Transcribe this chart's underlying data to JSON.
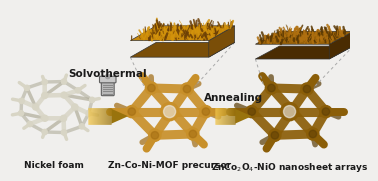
{
  "bg_color": "#f0efed",
  "label1": "Nickel foam",
  "label2": "Zn-Co-Ni-MOF precursor",
  "arrow1_label": "Solvothermal",
  "arrow2_label": "Annealing",
  "ni_foam_color": "#d8d5c5",
  "ni_foam_shadow": "#b0ad9a",
  "mof_color": "#c8902a",
  "mof_dark": "#a06a10",
  "oxide_color": "#8b5e08",
  "oxide_dark": "#5a3c05",
  "ns_top_color1": "#c4880a",
  "ns_top_color2": "#a06010",
  "ns_right_color1": "#8b5e08",
  "ns_right_color2": "#5a3c05",
  "arrow_color_start": "#e8c060",
  "arrow_color_end": "#c07820",
  "autoclave_color": "#b0b0b0",
  "text_color": "#1a1a1a",
  "label_fontsize": 6.5,
  "arrow_label_fontsize": 7.5,
  "fig_width": 3.78,
  "fig_height": 1.81,
  "dpi": 100
}
